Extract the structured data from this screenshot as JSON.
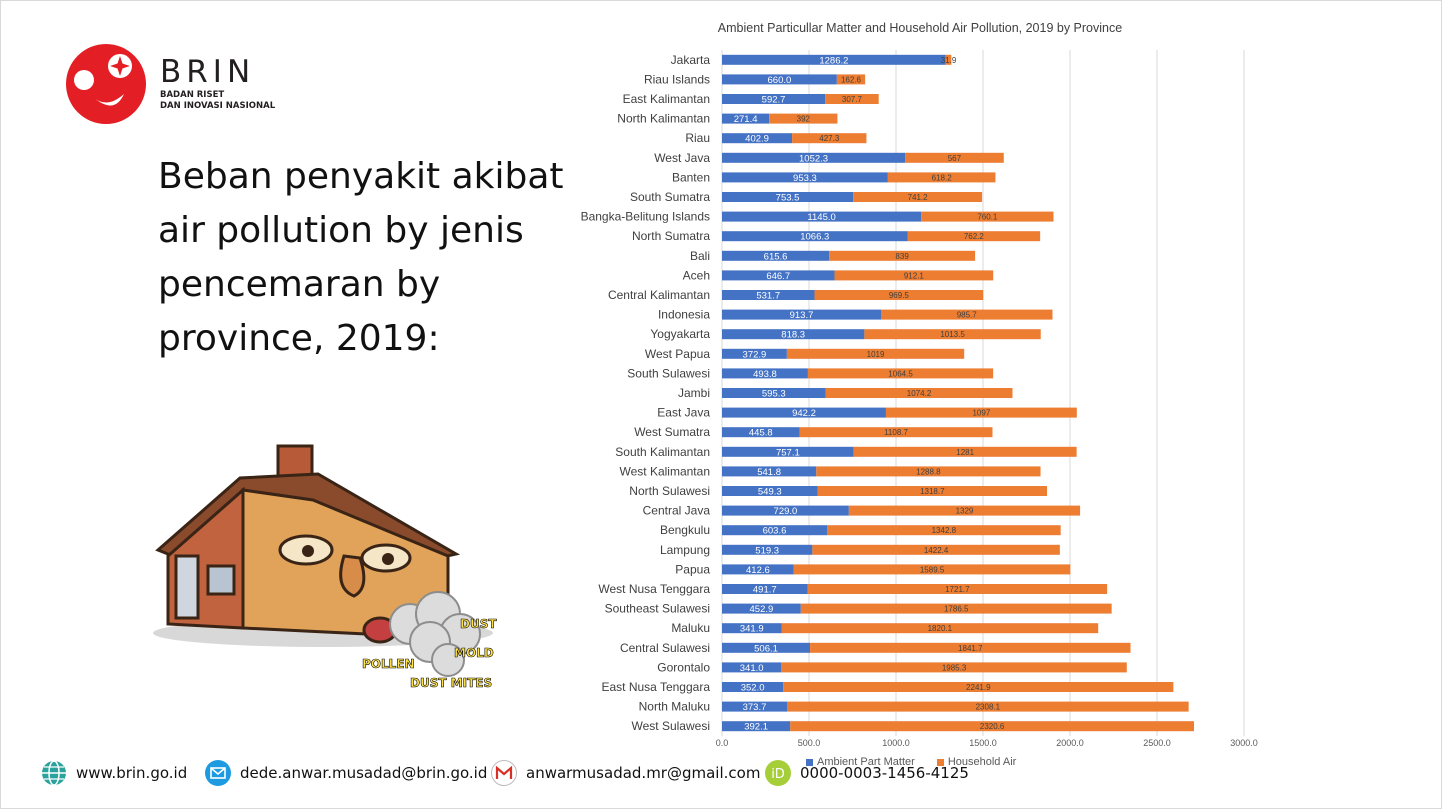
{
  "brand": {
    "name": "BRIN",
    "subtitle_line1": "BADAN RISET",
    "subtitle_line2": "DAN INOVASI NASIONAL",
    "colors": {
      "red": "#e31e24",
      "text": "#231f20"
    }
  },
  "slide": {
    "heading": "Beban penyakit akibat air pollution by jenis pencemaran by province, 2019:"
  },
  "illustration": {
    "labels": [
      "DUST",
      "MOLD",
      "POLLEN",
      "DUST MITES"
    ]
  },
  "footer": {
    "website": "www.brin.go.id",
    "email_work": "dede.anwar.musadad@brin.go.id",
    "email_personal": "anwarmusadad.mr@gmail.com",
    "orcid": "0000-0003-1456-4125",
    "icons": [
      "globe-icon",
      "mail-icon",
      "gmail-icon",
      "orcid-icon"
    ]
  },
  "chart_data": {
    "type": "bar",
    "orientation": "horizontal",
    "stacked": true,
    "title": "Ambient Particullar Matter and Household Air Pollution,  2019 by Province",
    "xlabel": "",
    "ylabel": "",
    "xlim": [
      0,
      3000
    ],
    "xticks": [
      "0.0",
      "500.0",
      "1000.0",
      "1500.0",
      "2000.0",
      "2500.0",
      "3000.0"
    ],
    "grid": true,
    "legend_position": "bottom",
    "categories": [
      "Jakarta",
      "Riau Islands",
      "East Kalimantan",
      "North Kalimantan",
      "Riau",
      "West Java",
      "Banten",
      "South Sumatra",
      "Bangka-Belitung Islands",
      "North Sumatra",
      "Bali",
      "Aceh",
      "Central Kalimantan",
      "Indonesia",
      "Yogyakarta",
      "West Papua",
      "South Sulawesi",
      "Jambi",
      "East Java",
      "West Sumatra",
      "South Kalimantan",
      "West Kalimantan",
      "North Sulawesi",
      "Central Java",
      "Bengkulu",
      "Lampung",
      "Papua",
      "West Nusa Tenggara",
      "Southeast Sulawesi",
      "Maluku",
      "Central Sulawesi",
      "Gorontalo",
      "East Nusa Tenggara",
      "North Maluku",
      "West Sulawesi"
    ],
    "series": [
      {
        "name": "Ambient Part Matter",
        "color": "#4472c4",
        "values": [
          1286.2,
          660.0,
          592.7,
          271.4,
          402.9,
          1052.3,
          953.3,
          753.5,
          1145.0,
          1066.3,
          615.6,
          646.7,
          531.7,
          913.7,
          818.3,
          372.9,
          493.8,
          595.3,
          942.2,
          445.8,
          757.1,
          541.8,
          549.3,
          729.0,
          603.6,
          519.3,
          412.6,
          491.7,
          452.9,
          341.9,
          506.1,
          341.0,
          352.0,
          373.7,
          392.1
        ],
        "labels": [
          "1286.2",
          "660.0",
          "592.7",
          "271.4",
          "402.9",
          "1052.3",
          "953.3",
          "753.5",
          "1145.0",
          "1066.3",
          "615.6",
          "646.7",
          "531.7",
          "913.7",
          "818.3",
          "372.9",
          "493.8",
          "595.3",
          "942.2",
          "445.8",
          "757.1",
          "541.8",
          "549.3",
          "729.0",
          "603.6",
          "519.3",
          "412.6",
          "491.7",
          "452.9",
          "341.9",
          "506.1",
          "341.0",
          "352.0",
          "373.7",
          "392.1"
        ]
      },
      {
        "name": "Household Air",
        "color": "#ed7d31",
        "values": [
          31.9,
          162.6,
          307.7,
          392,
          427.3,
          567,
          618.2,
          741.2,
          760.1,
          762.2,
          839,
          912.1,
          969.5,
          985.7,
          1013.5,
          1019,
          1064.5,
          1074.2,
          1097,
          1108.7,
          1281,
          1288.8,
          1318.7,
          1329,
          1342.8,
          1422.4,
          1589.5,
          1721.7,
          1786.5,
          1820.1,
          1841.7,
          1985.3,
          2241.9,
          2308.1,
          2320.6
        ],
        "labels": [
          "31.9",
          "162.6",
          "307.7",
          "392",
          "427.3",
          "567",
          "618.2",
          "741.2",
          "760.1",
          "762.2",
          "839",
          "912.1",
          "969.5",
          "985.7",
          "1013.5",
          "1019",
          "1064.5",
          "1074.2",
          "1097",
          "1108.7",
          "1281",
          "1288.8",
          "1318.7",
          "1329",
          "1342.8",
          "1422.4",
          "1589.5",
          "1721.7",
          "1786.5",
          "1820.1",
          "1841.7",
          "1985.3",
          "2241.9",
          "2308.1",
          "2320.6"
        ]
      }
    ]
  }
}
